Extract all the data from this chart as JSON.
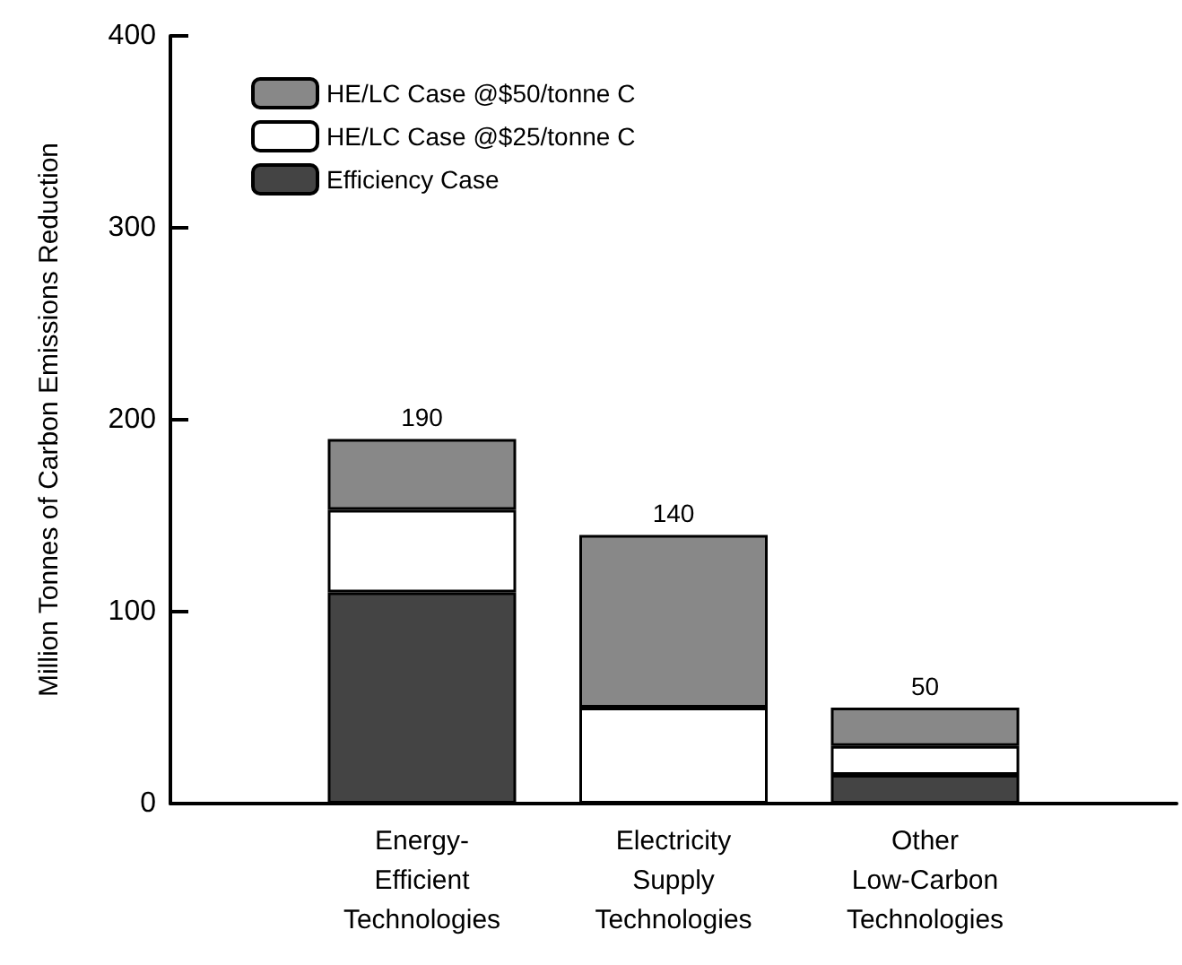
{
  "chart_data": {
    "type": "bar",
    "stacked": true,
    "ylabel": "Million Tonnes of Carbon Emissions Reduction",
    "categories": [
      "Energy-\nEfficient\nTechnologies",
      "Electricity\nSupply\nTechnologies",
      "Other\nLow-Carbon\nTechnologies"
    ],
    "series": [
      {
        "name": "Efficiency Case",
        "color": "#444444",
        "values": [
          110,
          0,
          15
        ]
      },
      {
        "name": "HE/LC Case @$25/tonne C",
        "color": "#ffffff",
        "values": [
          43,
          50,
          15
        ]
      },
      {
        "name": "HE/LC Case @$50/tonne C",
        "color": "#888888",
        "values": [
          37,
          90,
          20
        ]
      }
    ],
    "totals": [
      "190",
      "140",
      "50"
    ],
    "ylim": [
      0,
      400
    ],
    "yticks": [
      0,
      100,
      200,
      300,
      400
    ],
    "grid": false,
    "legend": "top left"
  }
}
